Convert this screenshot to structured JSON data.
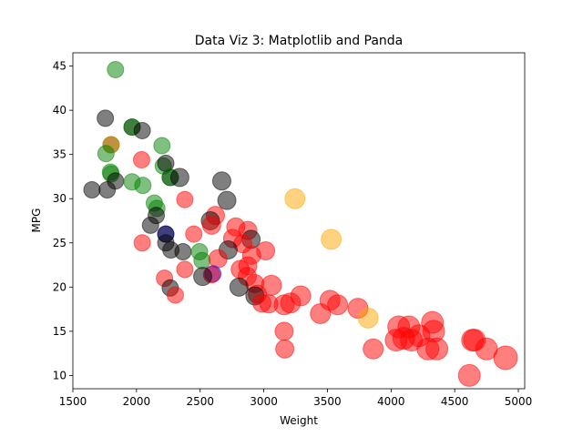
{
  "chart_data": {
    "type": "scatter",
    "title": "Data Viz 3: Matplotlib and Panda",
    "xlabel": "Weight",
    "ylabel": "MPG",
    "xlim": [
      1500,
      5050
    ],
    "ylim": [
      8.5,
      46.5
    ],
    "xticks": [
      1500,
      2000,
      2500,
      3000,
      3500,
      4000,
      4500,
      5000
    ],
    "yticks": [
      10,
      15,
      20,
      25,
      30,
      35,
      40,
      45
    ],
    "grid": false,
    "legend": "none",
    "alpha": 0.5,
    "colors": {
      "red": "#ff0000",
      "black": "#000000",
      "green": "#008000",
      "orange": "#ffa500",
      "blue": "#0000ff"
    },
    "points": [
      {
        "x": 1835,
        "y": 44.6,
        "r": 9,
        "c": "green"
      },
      {
        "x": 1755,
        "y": 39.1,
        "r": 9,
        "c": "black"
      },
      {
        "x": 1965,
        "y": 38.1,
        "r": 9,
        "c": "black"
      },
      {
        "x": 1965,
        "y": 38.1,
        "r": 9,
        "c": "green"
      },
      {
        "x": 2045,
        "y": 37.7,
        "r": 9,
        "c": "black"
      },
      {
        "x": 1800,
        "y": 36.1,
        "r": 9,
        "c": "black"
      },
      {
        "x": 1800,
        "y": 36.1,
        "r": 9,
        "c": "orange"
      },
      {
        "x": 2200,
        "y": 36.0,
        "r": 9,
        "c": "green"
      },
      {
        "x": 1760,
        "y": 35.1,
        "r": 9,
        "c": "green"
      },
      {
        "x": 2040,
        "y": 34.4,
        "r": 9,
        "c": "red"
      },
      {
        "x": 2210,
        "y": 33.7,
        "r": 9,
        "c": "green"
      },
      {
        "x": 2230,
        "y": 34.0,
        "r": 9,
        "c": "black"
      },
      {
        "x": 1795,
        "y": 33.0,
        "r": 9,
        "c": "green"
      },
      {
        "x": 1800,
        "y": 32.8,
        "r": 9,
        "c": "green"
      },
      {
        "x": 2265,
        "y": 32.4,
        "r": 9,
        "c": "black"
      },
      {
        "x": 2265,
        "y": 32.4,
        "r": 9,
        "c": "green"
      },
      {
        "x": 2340,
        "y": 32.4,
        "r": 10,
        "c": "black"
      },
      {
        "x": 1835,
        "y": 32.0,
        "r": 9,
        "c": "black"
      },
      {
        "x": 1965,
        "y": 31.9,
        "r": 9,
        "c": "green"
      },
      {
        "x": 2670,
        "y": 32.0,
        "r": 10,
        "c": "black"
      },
      {
        "x": 2050,
        "y": 31.5,
        "r": 9,
        "c": "green"
      },
      {
        "x": 1650,
        "y": 31.0,
        "r": 9,
        "c": "black"
      },
      {
        "x": 1770,
        "y": 31.0,
        "r": 9,
        "c": "black"
      },
      {
        "x": 3245,
        "y": 30.0,
        "r": 11,
        "c": "orange"
      },
      {
        "x": 2380,
        "y": 29.9,
        "r": 9,
        "c": "red"
      },
      {
        "x": 2710,
        "y": 29.8,
        "r": 10,
        "c": "black"
      },
      {
        "x": 2140,
        "y": 29.5,
        "r": 9,
        "c": "green"
      },
      {
        "x": 2160,
        "y": 28.9,
        "r": 9,
        "c": "green"
      },
      {
        "x": 2155,
        "y": 28.1,
        "r": 9,
        "c": "black"
      },
      {
        "x": 2620,
        "y": 28.1,
        "r": 10,
        "c": "red"
      },
      {
        "x": 2580,
        "y": 27.5,
        "r": 10,
        "c": "black"
      },
      {
        "x": 2590,
        "y": 27.0,
        "r": 10,
        "c": "red"
      },
      {
        "x": 2780,
        "y": 26.8,
        "r": 10,
        "c": "red"
      },
      {
        "x": 2110,
        "y": 27.0,
        "r": 9,
        "c": "black"
      },
      {
        "x": 2875,
        "y": 26.4,
        "r": 10,
        "c": "red"
      },
      {
        "x": 2450,
        "y": 26.0,
        "r": 9,
        "c": "red"
      },
      {
        "x": 2230,
        "y": 26.0,
        "r": 9,
        "c": "blue"
      },
      {
        "x": 2230,
        "y": 26.0,
        "r": 9,
        "c": "black"
      },
      {
        "x": 2900,
        "y": 25.4,
        "r": 10,
        "c": "black"
      },
      {
        "x": 3530,
        "y": 25.4,
        "r": 11,
        "c": "orange"
      },
      {
        "x": 2755,
        "y": 25.5,
        "r": 10,
        "c": "red"
      },
      {
        "x": 2230,
        "y": 25.0,
        "r": 9,
        "c": "black"
      },
      {
        "x": 2045,
        "y": 25.0,
        "r": 9,
        "c": "red"
      },
      {
        "x": 2835,
        "y": 24.9,
        "r": 10,
        "c": "red"
      },
      {
        "x": 2270,
        "y": 24.2,
        "r": 9,
        "c": "black"
      },
      {
        "x": 2365,
        "y": 24.0,
        "r": 9,
        "c": "black"
      },
      {
        "x": 2495,
        "y": 24.0,
        "r": 9,
        "c": "green"
      },
      {
        "x": 2720,
        "y": 24.2,
        "r": 10,
        "c": "black"
      },
      {
        "x": 3015,
        "y": 24.1,
        "r": 10,
        "c": "red"
      },
      {
        "x": 2905,
        "y": 23.6,
        "r": 10,
        "c": "red"
      },
      {
        "x": 2515,
        "y": 23.0,
        "r": 9,
        "c": "green"
      },
      {
        "x": 2640,
        "y": 23.2,
        "r": 10,
        "c": "red"
      },
      {
        "x": 2875,
        "y": 22.4,
        "r": 10,
        "c": "red"
      },
      {
        "x": 2380,
        "y": 22.0,
        "r": 9,
        "c": "red"
      },
      {
        "x": 2815,
        "y": 22.0,
        "r": 10,
        "c": "red"
      },
      {
        "x": 2600,
        "y": 21.5,
        "r": 9,
        "c": "blue"
      },
      {
        "x": 2590,
        "y": 21.4,
        "r": 9,
        "c": "red"
      },
      {
        "x": 2520,
        "y": 21.2,
        "r": 10,
        "c": "black"
      },
      {
        "x": 2870,
        "y": 21.2,
        "r": 10,
        "c": "red"
      },
      {
        "x": 2220,
        "y": 21.0,
        "r": 9,
        "c": "red"
      },
      {
        "x": 2930,
        "y": 20.4,
        "r": 10,
        "c": "red"
      },
      {
        "x": 2805,
        "y": 20.0,
        "r": 10,
        "c": "black"
      },
      {
        "x": 2265,
        "y": 19.9,
        "r": 9,
        "c": "black"
      },
      {
        "x": 3060,
        "y": 20.2,
        "r": 11,
        "c": "red"
      },
      {
        "x": 2950,
        "y": 19.2,
        "r": 10,
        "c": "red"
      },
      {
        "x": 2305,
        "y": 19.1,
        "r": 9,
        "c": "red"
      },
      {
        "x": 2930,
        "y": 19.0,
        "r": 10,
        "c": "black"
      },
      {
        "x": 3290,
        "y": 19.0,
        "r": 11,
        "c": "red"
      },
      {
        "x": 2985,
        "y": 18.2,
        "r": 10,
        "c": "red"
      },
      {
        "x": 3040,
        "y": 18.1,
        "r": 10,
        "c": "red"
      },
      {
        "x": 3160,
        "y": 18.0,
        "r": 11,
        "c": "red"
      },
      {
        "x": 3210,
        "y": 18.2,
        "r": 11,
        "c": "red"
      },
      {
        "x": 3520,
        "y": 18.5,
        "r": 11,
        "c": "red"
      },
      {
        "x": 3580,
        "y": 18.0,
        "r": 11,
        "c": "red"
      },
      {
        "x": 3740,
        "y": 17.6,
        "r": 11,
        "c": "red"
      },
      {
        "x": 3445,
        "y": 17.0,
        "r": 11,
        "c": "red"
      },
      {
        "x": 3820,
        "y": 16.5,
        "r": 11,
        "c": "orange"
      },
      {
        "x": 4060,
        "y": 15.5,
        "r": 12,
        "c": "red"
      },
      {
        "x": 4140,
        "y": 15.5,
        "r": 12,
        "c": "red"
      },
      {
        "x": 4325,
        "y": 16.0,
        "r": 12,
        "c": "red"
      },
      {
        "x": 4335,
        "y": 15.0,
        "r": 12,
        "c": "red"
      },
      {
        "x": 3160,
        "y": 15.0,
        "r": 10,
        "c": "red"
      },
      {
        "x": 4040,
        "y": 14.0,
        "r": 12,
        "c": "red"
      },
      {
        "x": 4100,
        "y": 14.2,
        "r": 12,
        "c": "red"
      },
      {
        "x": 4160,
        "y": 14.0,
        "r": 12,
        "c": "red"
      },
      {
        "x": 4220,
        "y": 14.5,
        "r": 12,
        "c": "red"
      },
      {
        "x": 4640,
        "y": 14.0,
        "r": 12,
        "c": "red"
      },
      {
        "x": 4655,
        "y": 14.0,
        "r": 12,
        "c": "red"
      },
      {
        "x": 4290,
        "y": 13.0,
        "r": 12,
        "c": "red"
      },
      {
        "x": 4360,
        "y": 13.0,
        "r": 12,
        "c": "red"
      },
      {
        "x": 4750,
        "y": 13.0,
        "r": 12,
        "c": "red"
      },
      {
        "x": 3860,
        "y": 13.0,
        "r": 11,
        "c": "red"
      },
      {
        "x": 3165,
        "y": 13.0,
        "r": 10,
        "c": "red"
      },
      {
        "x": 4900,
        "y": 12.0,
        "r": 13,
        "c": "red"
      },
      {
        "x": 4615,
        "y": 10.0,
        "r": 12,
        "c": "red"
      }
    ]
  }
}
